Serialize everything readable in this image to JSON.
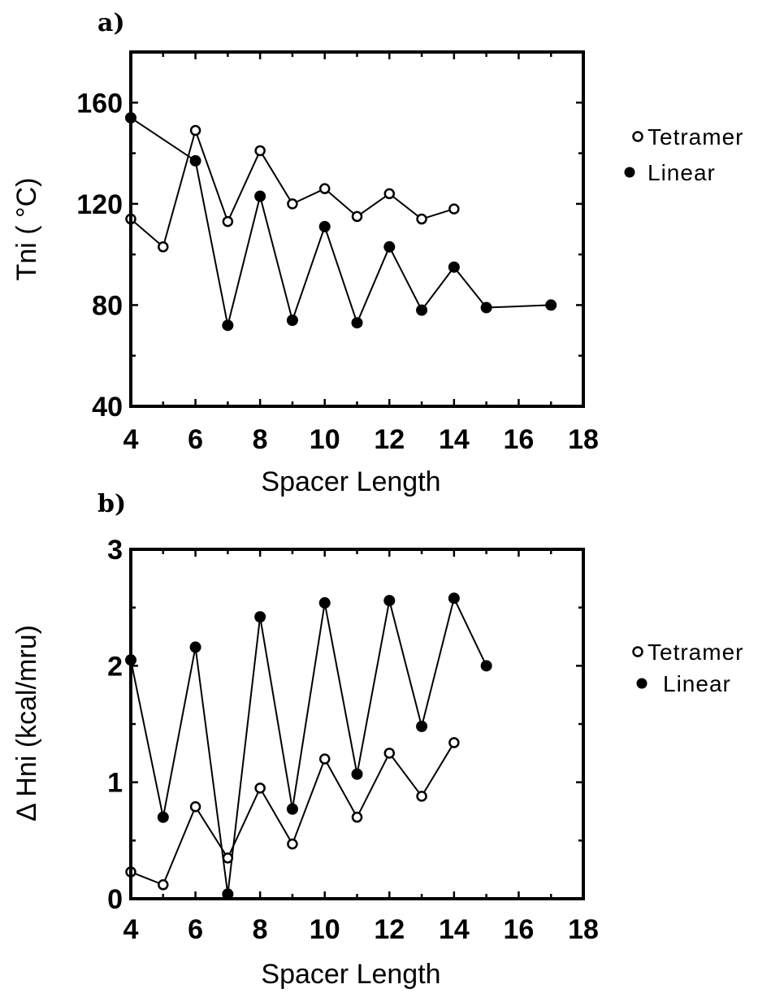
{
  "chart_data": [
    {
      "type": "line",
      "panel_label": "a)",
      "xlabel": "Spacer Length",
      "ylabel": "Tni ( °C)",
      "xlim": [
        4,
        18
      ],
      "ylim": [
        40,
        180
      ],
      "xticks": [
        4,
        6,
        8,
        10,
        12,
        14,
        16,
        18
      ],
      "yticks": [
        40,
        80,
        120,
        160
      ],
      "grid": false,
      "legend_position": "right",
      "series": [
        {
          "name": "Tetramer",
          "marker": "open-circle",
          "x": [
            4,
            5,
            6,
            7,
            8,
            9,
            10,
            11,
            12,
            13,
            14
          ],
          "y": [
            114,
            103,
            149,
            113,
            141,
            120,
            126,
            115,
            124,
            114,
            118
          ]
        },
        {
          "name": "Linear",
          "marker": "filled-circle",
          "x": [
            4,
            6,
            7,
            8,
            9,
            10,
            11,
            12,
            13,
            14,
            15,
            17
          ],
          "y": [
            154,
            137,
            72,
            123,
            74,
            111,
            73,
            103,
            78,
            95,
            79,
            80
          ]
        }
      ]
    },
    {
      "type": "line",
      "panel_label": "b)",
      "xlabel": "Spacer Length",
      "ylabel": "Δ Hni (kcal/mru)",
      "xlim": [
        4,
        18
      ],
      "ylim": [
        0,
        3
      ],
      "xticks": [
        4,
        6,
        8,
        10,
        12,
        14,
        16,
        18
      ],
      "yticks": [
        0,
        1,
        2,
        3
      ],
      "grid": false,
      "legend_position": "right",
      "series": [
        {
          "name": "Tetramer",
          "marker": "open-circle",
          "x": [
            4,
            5,
            6,
            7,
            8,
            9,
            10,
            11,
            12,
            13,
            14
          ],
          "y": [
            0.23,
            0.12,
            0.79,
            0.35,
            0.95,
            0.47,
            1.2,
            0.7,
            1.25,
            0.88,
            1.34
          ]
        },
        {
          "name": "Linear",
          "marker": "filled-circle",
          "x": [
            4,
            5,
            6,
            7,
            8,
            9,
            10,
            11,
            12,
            13,
            14,
            15
          ],
          "y": [
            2.05,
            0.7,
            2.16,
            0.04,
            2.42,
            0.77,
            2.54,
            1.07,
            2.56,
            1.48,
            2.58,
            2.0
          ]
        }
      ]
    }
  ]
}
